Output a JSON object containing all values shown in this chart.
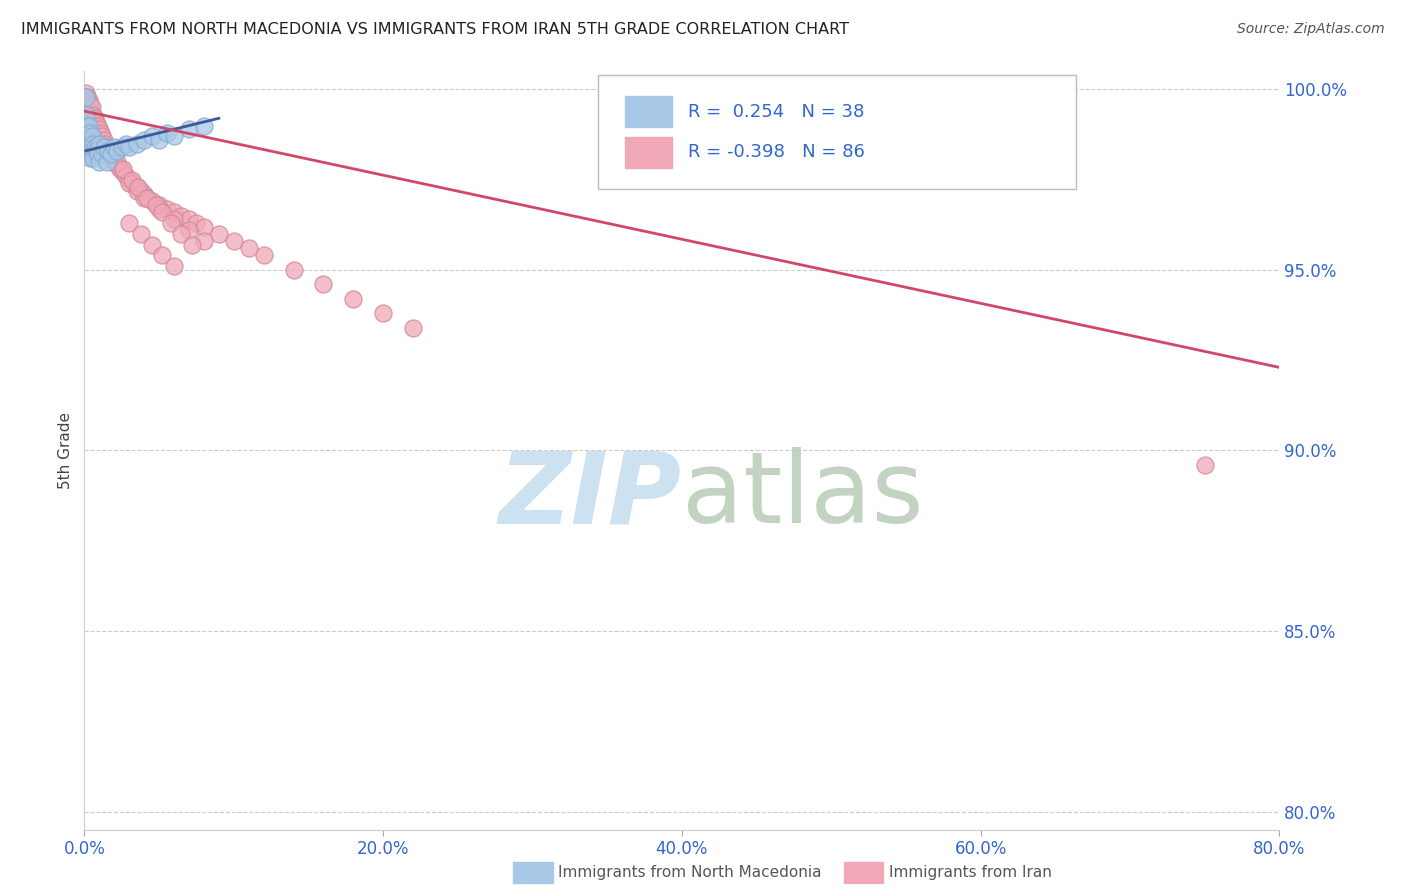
{
  "title": "IMMIGRANTS FROM NORTH MACEDONIA VS IMMIGRANTS FROM IRAN 5TH GRADE CORRELATION CHART",
  "source": "Source: ZipAtlas.com",
  "ylabel": "5th Grade",
  "blue_R": 0.254,
  "blue_N": 38,
  "pink_R": -0.398,
  "pink_N": 86,
  "blue_color": "#a8c8e8",
  "blue_edge_color": "#88aacc",
  "blue_line_color": "#3a5a9a",
  "pink_color": "#f0a8b8",
  "pink_edge_color": "#d08898",
  "pink_line_color": "#d04868",
  "legend_color": "#3366cc",
  "watermark_zip_color": "#c8dff0",
  "watermark_atlas_color": "#b8ccb8",
  "tick_color": "#3366cc",
  "label_color": "#444444",
  "grid_color": "#cccccc",
  "blue_x": [
    0.001,
    0.001,
    0.002,
    0.002,
    0.002,
    0.003,
    0.003,
    0.003,
    0.004,
    0.004,
    0.004,
    0.005,
    0.005,
    0.006,
    0.006,
    0.007,
    0.008,
    0.009,
    0.01,
    0.01,
    0.012,
    0.013,
    0.015,
    0.016,
    0.018,
    0.02,
    0.022,
    0.025,
    0.028,
    0.03,
    0.035,
    0.04,
    0.045,
    0.05,
    0.055,
    0.06,
    0.07,
    0.08
  ],
  "blue_y": [
    0.998,
    0.993,
    0.99,
    0.987,
    0.984,
    0.99,
    0.986,
    0.982,
    0.988,
    0.985,
    0.981,
    0.987,
    0.983,
    0.985,
    0.981,
    0.984,
    0.983,
    0.982,
    0.985,
    0.98,
    0.982,
    0.984,
    0.98,
    0.983,
    0.982,
    0.984,
    0.983,
    0.984,
    0.985,
    0.984,
    0.985,
    0.986,
    0.987,
    0.986,
    0.988,
    0.987,
    0.989,
    0.99
  ],
  "pink_x": [
    0.001,
    0.001,
    0.001,
    0.002,
    0.002,
    0.002,
    0.002,
    0.003,
    0.003,
    0.003,
    0.003,
    0.004,
    0.004,
    0.004,
    0.005,
    0.005,
    0.005,
    0.006,
    0.006,
    0.007,
    0.007,
    0.008,
    0.008,
    0.009,
    0.01,
    0.01,
    0.011,
    0.012,
    0.013,
    0.014,
    0.015,
    0.016,
    0.017,
    0.018,
    0.02,
    0.022,
    0.024,
    0.026,
    0.028,
    0.03,
    0.032,
    0.035,
    0.038,
    0.04,
    0.042,
    0.045,
    0.05,
    0.055,
    0.06,
    0.065,
    0.07,
    0.075,
    0.08,
    0.09,
    0.1,
    0.11,
    0.12,
    0.14,
    0.16,
    0.18,
    0.2,
    0.22,
    0.03,
    0.035,
    0.04,
    0.05,
    0.06,
    0.07,
    0.08,
    0.018,
    0.022,
    0.026,
    0.032,
    0.036,
    0.042,
    0.048,
    0.052,
    0.058,
    0.065,
    0.072,
    0.03,
    0.038,
    0.045,
    0.052,
    0.06,
    0.75
  ],
  "pink_y": [
    0.999,
    0.996,
    0.993,
    0.998,
    0.995,
    0.992,
    0.989,
    0.997,
    0.994,
    0.991,
    0.988,
    0.996,
    0.993,
    0.99,
    0.995,
    0.992,
    0.989,
    0.993,
    0.99,
    0.992,
    0.989,
    0.991,
    0.988,
    0.99,
    0.989,
    0.986,
    0.988,
    0.987,
    0.986,
    0.985,
    0.984,
    0.983,
    0.982,
    0.981,
    0.98,
    0.979,
    0.978,
    0.977,
    0.976,
    0.975,
    0.974,
    0.973,
    0.972,
    0.971,
    0.97,
    0.969,
    0.968,
    0.967,
    0.966,
    0.965,
    0.964,
    0.963,
    0.962,
    0.96,
    0.958,
    0.956,
    0.954,
    0.95,
    0.946,
    0.942,
    0.938,
    0.934,
    0.974,
    0.972,
    0.97,
    0.967,
    0.964,
    0.961,
    0.958,
    0.982,
    0.98,
    0.978,
    0.975,
    0.973,
    0.97,
    0.968,
    0.966,
    0.963,
    0.96,
    0.957,
    0.963,
    0.96,
    0.957,
    0.954,
    0.951,
    0.896
  ],
  "pink_trend_x": [
    0.0,
    0.8
  ],
  "pink_trend_y": [
    0.994,
    0.923
  ],
  "blue_trend_x": [
    0.001,
    0.09
  ],
  "blue_trend_y": [
    0.983,
    0.992
  ],
  "xlim": [
    0.0,
    0.8
  ],
  "ylim": [
    0.795,
    1.005
  ],
  "yticks": [
    0.8,
    0.85,
    0.9,
    0.95,
    1.0
  ],
  "ytick_labels": [
    "80.0%",
    "85.0%",
    "90.0%",
    "95.0%",
    "100.0%"
  ],
  "xticks": [
    0.0,
    0.2,
    0.4,
    0.6,
    0.8
  ],
  "xtick_labels": [
    "0.0%",
    "20.0%",
    "40.0%",
    "60.0%",
    "80.0%"
  ]
}
